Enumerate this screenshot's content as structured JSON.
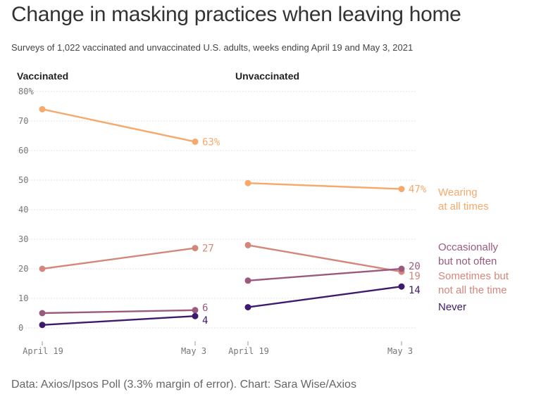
{
  "title": "Change in masking practices when leaving home",
  "subtitle": "Surveys of 1,022 vaccinated and unvaccinated U.S. adults, weeks ending April 19 and May 3, 2021",
  "source": "Data: Axios/Ipsos Poll (3.3% margin of error). Chart: Sara Wise/Axios",
  "colors": {
    "wearing_all": "#f6a96b",
    "sometimes": "#d4867a",
    "occasionally": "#9a5a7e",
    "never": "#3d1a6e",
    "grid": "#dddddd",
    "axis_text": "#777777"
  },
  "chart_data": [
    {
      "type": "line",
      "title": "Vaccinated",
      "categories": [
        "April 19",
        "May 3"
      ],
      "y_ticks": [
        "0",
        "10",
        "20",
        "30",
        "40",
        "50",
        "60",
        "70",
        "80%"
      ],
      "ylim": [
        0,
        80
      ],
      "series": [
        {
          "key": "wearing_all",
          "name": "Wearing at all times",
          "values": [
            74,
            63
          ],
          "end_label": "63%"
        },
        {
          "key": "sometimes",
          "name": "Sometimes but not all the time",
          "values": [
            20,
            27
          ],
          "end_label": "27"
        },
        {
          "key": "occasionally",
          "name": "Occasionally but not often",
          "values": [
            5,
            6
          ],
          "end_label": "6"
        },
        {
          "key": "never",
          "name": "Never",
          "values": [
            1,
            4
          ],
          "end_label": "4"
        }
      ]
    },
    {
      "type": "line",
      "title": "Unvaccinated",
      "categories": [
        "April 19",
        "May 3"
      ],
      "ylim": [
        0,
        80
      ],
      "series": [
        {
          "key": "wearing_all",
          "name": "Wearing at all times",
          "values": [
            49,
            47
          ],
          "end_label": "47%"
        },
        {
          "key": "sometimes",
          "name": "Sometimes but not all the time",
          "values": [
            28,
            19
          ],
          "end_label": "19"
        },
        {
          "key": "occasionally",
          "name": "Occasionally but not often",
          "values": [
            16,
            20
          ],
          "end_label": "20"
        },
        {
          "key": "never",
          "name": "Never",
          "values": [
            7,
            14
          ],
          "end_label": "14"
        }
      ]
    }
  ],
  "legend": [
    {
      "key": "wearing_all",
      "lines": [
        "Wearing",
        "at all times"
      ]
    },
    {
      "key": "occasionally",
      "lines": [
        "Occasionally",
        "but not often"
      ]
    },
    {
      "key": "sometimes",
      "lines": [
        "Sometimes but",
        "not all the time"
      ]
    },
    {
      "key": "never",
      "lines": [
        "Never"
      ]
    }
  ]
}
